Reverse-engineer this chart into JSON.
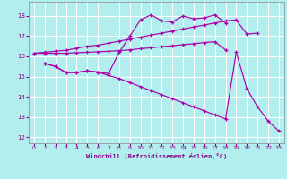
{
  "bg_color": "#b2eeee",
  "grid_color": "#ffffff",
  "line_color": "#aa00aa",
  "xlabel": "Windchill (Refroidissement éolien,°C)",
  "xlim": [
    -0.5,
    23.5
  ],
  "ylim": [
    11.7,
    18.7
  ],
  "yticks": [
    12,
    13,
    14,
    15,
    16,
    17,
    18
  ],
  "xticks": [
    0,
    1,
    2,
    3,
    4,
    5,
    6,
    7,
    8,
    9,
    10,
    11,
    12,
    13,
    14,
    15,
    16,
    17,
    18,
    19,
    20,
    21,
    22,
    23
  ],
  "line1": {
    "x": [
      0,
      1,
      2,
      3,
      4,
      5,
      6,
      7,
      8,
      9,
      10,
      11,
      12,
      13,
      14,
      15,
      16,
      17,
      18,
      19,
      20,
      21
    ],
    "y": [
      16.15,
      16.2,
      16.25,
      16.3,
      16.4,
      16.5,
      16.55,
      16.65,
      16.75,
      16.85,
      16.95,
      17.05,
      17.15,
      17.25,
      17.35,
      17.45,
      17.55,
      17.65,
      17.75,
      17.8,
      17.1,
      17.15
    ]
  },
  "line2": {
    "x": [
      0,
      1,
      2,
      3,
      4,
      5,
      6,
      7,
      8,
      9,
      10,
      11,
      12,
      13,
      14,
      15,
      16,
      17,
      18
    ],
    "y": [
      16.15,
      16.15,
      16.15,
      16.15,
      16.18,
      16.2,
      16.22,
      16.25,
      16.28,
      16.32,
      16.38,
      16.42,
      16.48,
      16.52,
      16.58,
      16.62,
      16.68,
      16.72,
      16.32
    ]
  },
  "line3": {
    "x": [
      1,
      2,
      3,
      4,
      5,
      6,
      7,
      8,
      9,
      10,
      11,
      12,
      13,
      14,
      15,
      16,
      17,
      18
    ],
    "y": [
      15.65,
      15.5,
      15.2,
      15.2,
      15.28,
      15.22,
      15.15,
      16.2,
      17.0,
      17.8,
      18.05,
      17.75,
      17.7,
      18.0,
      17.85,
      17.9,
      18.05,
      17.65
    ]
  },
  "line4": {
    "x": [
      1,
      2,
      3,
      4,
      5,
      6,
      7,
      8,
      9,
      10,
      11,
      12,
      13,
      14,
      15,
      16,
      17,
      18,
      19,
      20,
      21,
      22,
      23
    ],
    "y": [
      15.65,
      15.5,
      15.2,
      15.2,
      15.28,
      15.22,
      15.05,
      14.9,
      14.7,
      14.5,
      14.3,
      14.1,
      13.9,
      13.7,
      13.5,
      13.3,
      13.1,
      12.9,
      16.2,
      14.4,
      13.5,
      12.8,
      12.3
    ]
  }
}
